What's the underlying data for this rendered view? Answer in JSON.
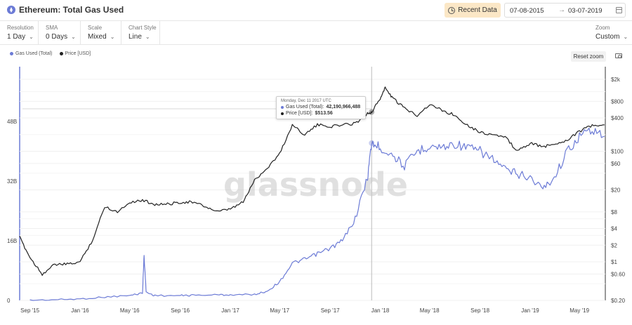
{
  "header": {
    "title": "Ethereum: Total Gas Used",
    "recent_label": "Recent Data",
    "date_from": "07-08-2015",
    "date_arrow": "→",
    "date_to": "03-07-2019"
  },
  "controls": [
    {
      "label": "Resolution",
      "value": "1 Day"
    },
    {
      "label": "SMA",
      "value": "0 Days"
    },
    {
      "label": "Scale",
      "value": "Mixed"
    },
    {
      "label": "Chart Style",
      "value": "Line"
    }
  ],
  "zoom": {
    "label": "Zoom",
    "value": "Custom"
  },
  "legend": [
    {
      "name": "Gas Used (Total)",
      "color": "#6c7bd6"
    },
    {
      "name": "Price [USD]",
      "color": "#222222"
    }
  ],
  "reset_zoom_label": "Reset zoom",
  "watermark": "glassnode",
  "tooltip": {
    "title": "Monday, Dec 11 2017 UTC",
    "gas_label": "Gas Used (Total):",
    "gas_value": "42,190,966,488",
    "price_label": "Price [USD]:",
    "price_value": "$513.56"
  },
  "chart_data": {
    "type": "line",
    "x_ticks": [
      "Sep '15",
      "Jan '16",
      "May '16",
      "Sep '16",
      "Jan '17",
      "May '17",
      "Sep '17",
      "Jan '18",
      "May '18",
      "Sep '18",
      "Jan '19",
      "May '19"
    ],
    "y_left_ticks": [
      "0",
      "16B",
      "32B",
      "48B"
    ],
    "y_left_range": [
      0,
      48000000000
    ],
    "y_right_ticks": [
      "$0.20",
      "$0.60",
      "$1",
      "$2",
      "$4",
      "$8",
      "$20",
      "$60",
      "$100",
      "$400",
      "$800",
      "$2k"
    ],
    "y_right_scale": "log",
    "legend_position": "top-left",
    "series": [
      {
        "name": "Gas Used (Total)",
        "color": "#6c7bd6",
        "axis": "left",
        "x": [
          "2015-09-01",
          "2015-11-01",
          "2016-01-01",
          "2016-03-01",
          "2016-05-01",
          "2016-06-01",
          "2016-06-05",
          "2016-06-10",
          "2016-07-01",
          "2016-09-01",
          "2016-10-01",
          "2016-12-01",
          "2017-01-01",
          "2017-03-01",
          "2017-04-01",
          "2017-05-01",
          "2017-06-01",
          "2017-07-01",
          "2017-08-01",
          "2017-09-01",
          "2017-10-01",
          "2017-11-01",
          "2017-12-01",
          "2017-12-11",
          "2018-01-01",
          "2018-02-01",
          "2018-03-01",
          "2018-04-01",
          "2018-05-01",
          "2018-06-01",
          "2018-07-01",
          "2018-08-01",
          "2018-09-01",
          "2018-10-01",
          "2018-11-01",
          "2018-12-01",
          "2019-01-01",
          "2019-02-01",
          "2019-03-01",
          "2019-04-01",
          "2019-05-01",
          "2019-06-01",
          "2019-07-01"
        ],
        "values": [
          50000000,
          200000000,
          400000000,
          900000000,
          1300000000,
          2000000000,
          12000000000,
          2200000000,
          1300000000,
          1300000000,
          1400000000,
          1500000000,
          1500000000,
          1600000000,
          2500000000,
          5000000000,
          10000000000,
          11000000000,
          12500000000,
          14000000000,
          16000000000,
          22000000000,
          33000000000,
          42190966488,
          41000000000,
          39000000000,
          36000000000,
          40000000000,
          41500000000,
          41000000000,
          42000000000,
          41000000000,
          40000000000,
          38000000000,
          35000000000,
          34000000000,
          33000000000,
          30000000000,
          33000000000,
          40000000000,
          44000000000,
          46000000000,
          44000000000
        ]
      },
      {
        "name": "Price [USD]",
        "color": "#222222",
        "axis": "right",
        "x": [
          "2015-08-07",
          "2015-09-01",
          "2015-10-01",
          "2015-11-01",
          "2015-12-01",
          "2016-01-01",
          "2016-02-01",
          "2016-03-01",
          "2016-04-01",
          "2016-05-01",
          "2016-06-01",
          "2016-07-01",
          "2016-08-01",
          "2016-09-01",
          "2016-10-01",
          "2016-11-01",
          "2016-12-01",
          "2017-01-01",
          "2017-02-01",
          "2017-03-01",
          "2017-04-01",
          "2017-05-01",
          "2017-06-01",
          "2017-07-01",
          "2017-08-01",
          "2017-09-01",
          "2017-10-01",
          "2017-11-01",
          "2017-12-01",
          "2017-12-11",
          "2018-01-01",
          "2018-01-13",
          "2018-02-01",
          "2018-03-01",
          "2018-04-01",
          "2018-05-01",
          "2018-06-01",
          "2018-07-01",
          "2018-08-01",
          "2018-09-01",
          "2018-10-01",
          "2018-11-01",
          "2018-12-01",
          "2019-01-01",
          "2019-02-01",
          "2019-03-01",
          "2019-04-01",
          "2019-05-01",
          "2019-06-01",
          "2019-07-01"
        ],
        "values": [
          2.77,
          1.2,
          0.6,
          0.9,
          0.9,
          1.0,
          2.5,
          10,
          8,
          12,
          13,
          11,
          11,
          12,
          12,
          10,
          8,
          9,
          12,
          30,
          50,
          90,
          300,
          200,
          300,
          280,
          300,
          320,
          480,
          513.56,
          900,
          1400,
          900,
          600,
          450,
          700,
          550,
          450,
          300,
          220,
          200,
          180,
          100,
          140,
          120,
          135,
          160,
          230,
          290,
          300
        ]
      }
    ]
  }
}
